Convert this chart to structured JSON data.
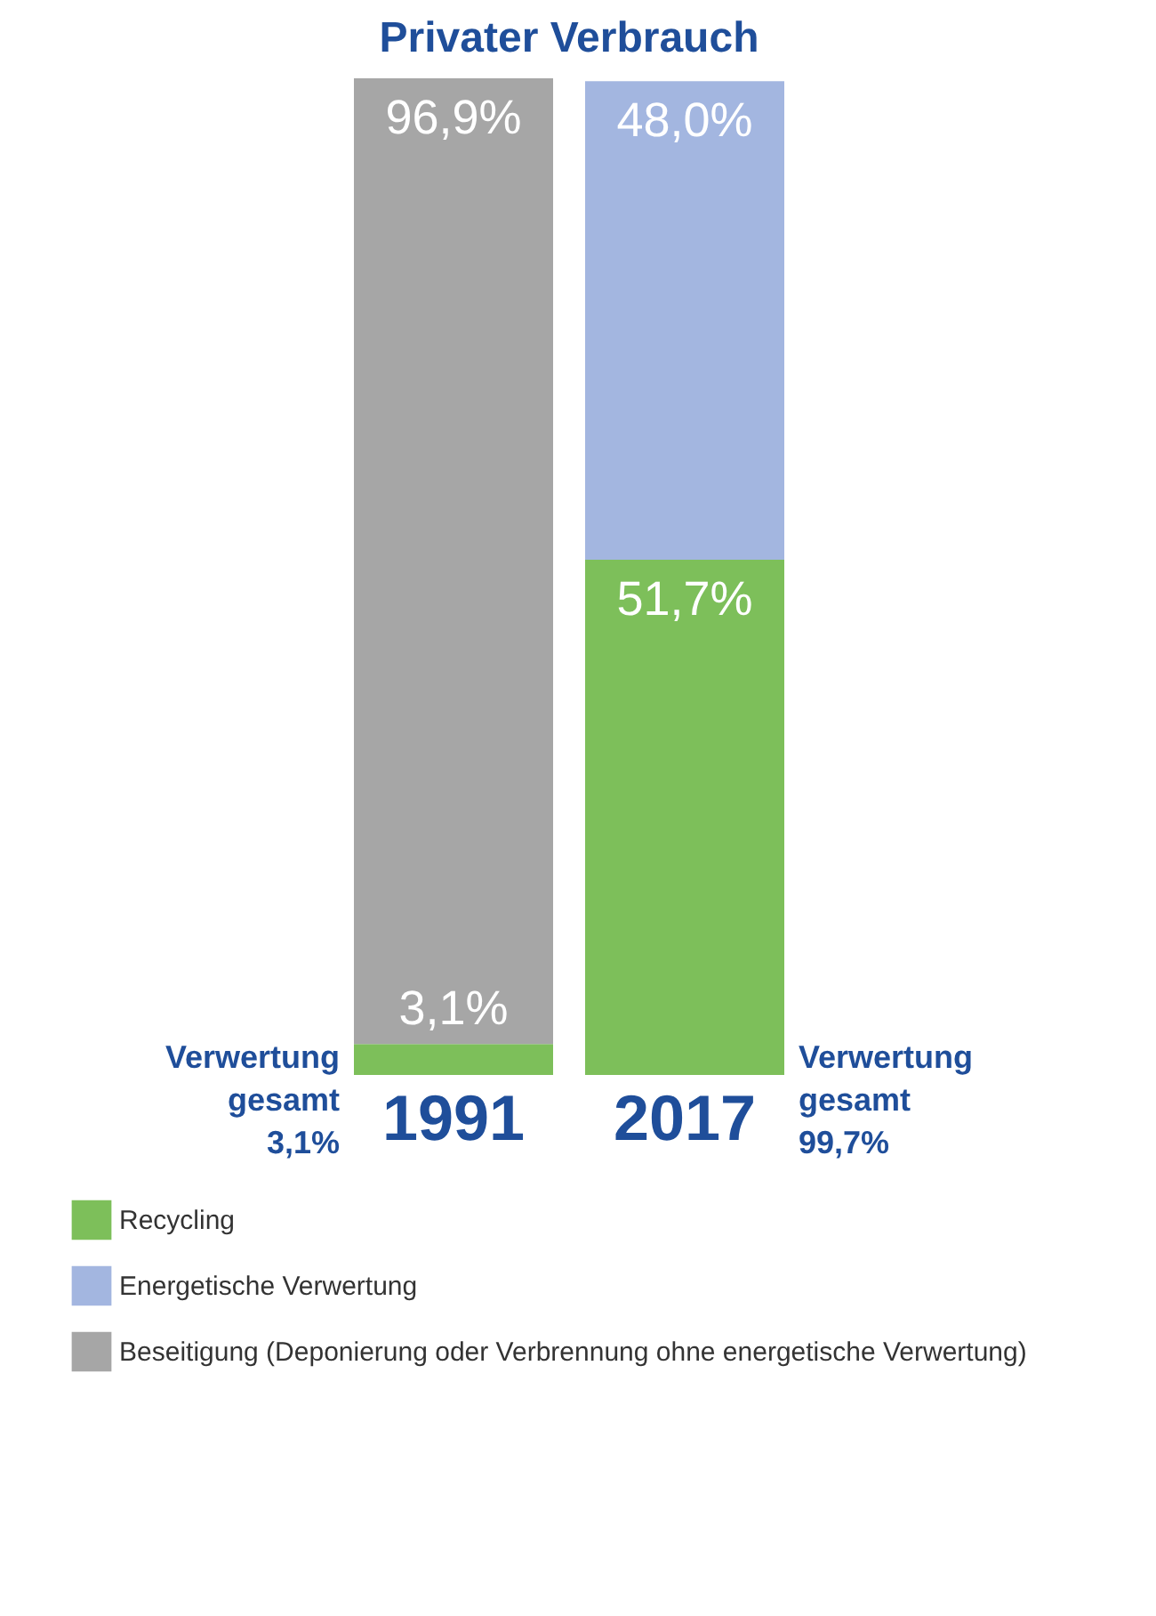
{
  "chart_data": {
    "type": "bar",
    "stacked": true,
    "title": "Privater Verbrauch",
    "categories": [
      "1991",
      "2017"
    ],
    "tick_labels": "x",
    "legend": "bottom",
    "grid": false,
    "series": [
      {
        "name": "Recycling",
        "color": "#7dbf5a",
        "values": [
          3.1,
          51.7
        ],
        "value_labels": [
          "3,1%",
          "51,7%"
        ]
      },
      {
        "name": "Energetische Verwertung",
        "color": "#a3b6e0",
        "values": [
          null,
          48.0
        ],
        "value_labels": [
          null,
          "48,0%"
        ]
      },
      {
        "name": "Beseitigung (Deponierung oder Verbrennung ohne energetische Verwertung)",
        "color": "#a6a6a6",
        "values": [
          96.9,
          null
        ],
        "value_labels": [
          "96,9%",
          null
        ]
      }
    ],
    "annotations": [
      "Verwertung gesamt 3,1%",
      "Verwertung gesamt 99,7%"
    ]
  }
}
